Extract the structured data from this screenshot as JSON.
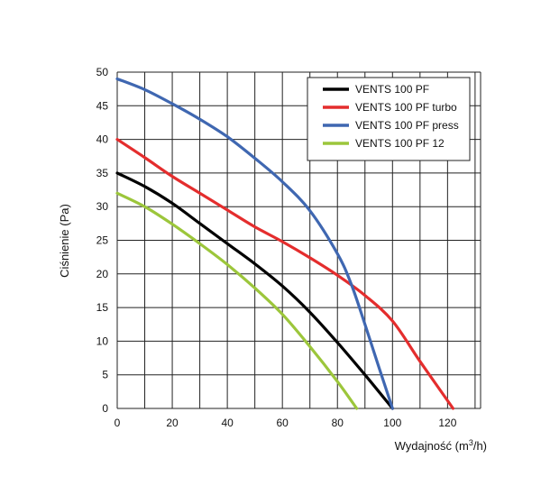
{
  "chart_data": {
    "type": "line",
    "title": "",
    "xlabel": "Wydajność (m",
    "xlabel_sup": "3",
    "xlabel_suffix": "/h)",
    "ylabel": "Ciśnienie (Pa)",
    "xlim": [
      0,
      132
    ],
    "ylim": [
      0,
      50
    ],
    "x_ticks": [
      0,
      20,
      40,
      60,
      80,
      100,
      120
    ],
    "y_ticks": [
      0,
      5,
      10,
      15,
      20,
      25,
      30,
      35,
      40,
      45,
      50
    ],
    "x_grid_step": 10,
    "y_grid_step": 5,
    "grid": true,
    "legend_position": "top-right",
    "series": [
      {
        "name": "VENTS 100 PF",
        "color": "#000000",
        "x": [
          0,
          10,
          20,
          30,
          40,
          50,
          60,
          70,
          80,
          90,
          100
        ],
        "y": [
          35,
          33,
          30.5,
          27.5,
          24.5,
          21.5,
          18.2,
          14.3,
          9.8,
          5,
          0
        ]
      },
      {
        "name": "VENTS 100 PF turbo",
        "color": "#e42d2d",
        "x": [
          0,
          10,
          20,
          30,
          40,
          50,
          60,
          70,
          80,
          90,
          100,
          110,
          122
        ],
        "y": [
          40,
          37.3,
          34.5,
          32,
          29.5,
          27,
          24.8,
          22.4,
          19.8,
          16.8,
          13,
          7,
          0
        ]
      },
      {
        "name": "VENTS 100 PF press",
        "color": "#3f67b1",
        "x": [
          0,
          10,
          20,
          30,
          40,
          50,
          60,
          70,
          80,
          85,
          90,
          95,
          100
        ],
        "y": [
          49,
          47.4,
          45.3,
          43,
          40.4,
          37.2,
          33.7,
          29.4,
          23,
          18.5,
          12.5,
          6.2,
          0
        ]
      },
      {
        "name": "VENTS 100 PF 12",
        "color": "#9cc63b",
        "x": [
          0,
          10,
          20,
          30,
          40,
          50,
          60,
          70,
          80,
          87
        ],
        "y": [
          32,
          30,
          27.4,
          24.5,
          21.4,
          17.9,
          14,
          9.2,
          4,
          0
        ]
      }
    ]
  }
}
